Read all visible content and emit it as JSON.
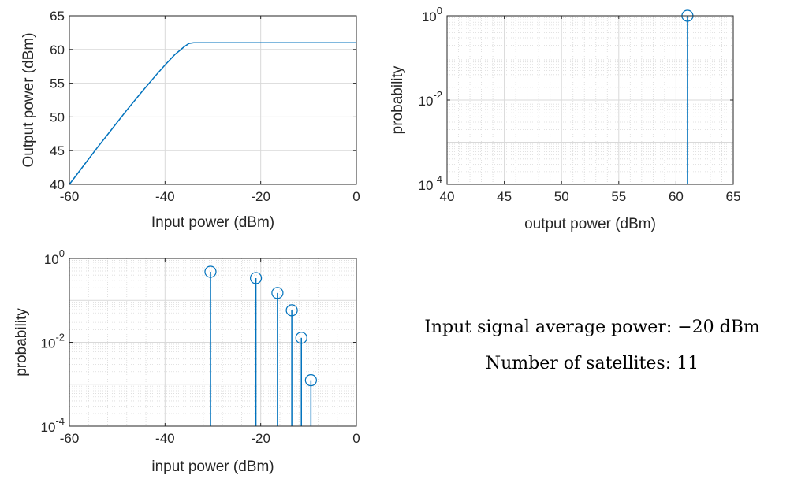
{
  "colors": {
    "series": "#0072BD",
    "grid": "#d9d9d9",
    "axis": "#262626"
  },
  "chart_data": [
    {
      "type": "line",
      "xlabel": "Input power (dBm)",
      "ylabel": "Output power (dBm)",
      "xlim": [
        -60,
        0
      ],
      "ylim": [
        40,
        65
      ],
      "xticks": [
        "-60",
        "-40",
        "-20",
        "0"
      ],
      "yticks": [
        "40",
        "45",
        "50",
        "55",
        "60",
        "65"
      ],
      "grid": true,
      "series": [
        {
          "x": [
            -60,
            -57,
            -54,
            -51,
            -48,
            -45,
            -42,
            -40,
            -38,
            -36,
            -35,
            -34,
            -30,
            -20,
            -10,
            0
          ],
          "y": [
            40.0,
            42.8,
            45.6,
            48.3,
            51.0,
            53.6,
            56.1,
            57.7,
            59.2,
            60.4,
            60.9,
            61.0,
            61.0,
            61.0,
            61.0,
            61.0
          ]
        }
      ]
    },
    {
      "type": "stem",
      "xlabel": "output power (dBm)",
      "ylabel": "probability",
      "xlim": [
        40,
        65
      ],
      "ylim": [
        0.0001,
        1
      ],
      "yscale": "log",
      "xticks": [
        "40",
        "45",
        "50",
        "55",
        "60",
        "65"
      ],
      "yticks": [
        {
          "base": "10",
          "exp": "-4"
        },
        {
          "base": "10",
          "exp": "-2"
        },
        {
          "base": "10",
          "exp": "0"
        }
      ],
      "grid": true,
      "series": [
        {
          "x": [
            61
          ],
          "y": [
            1.0
          ]
        }
      ]
    },
    {
      "type": "stem",
      "xlabel": "input power (dBm)",
      "ylabel": "probability",
      "xlim": [
        -60,
        0
      ],
      "ylim": [
        0.0001,
        1
      ],
      "yscale": "log",
      "xticks": [
        "-60",
        "-40",
        "-20",
        "0"
      ],
      "yticks": [
        {
          "base": "10",
          "exp": "-4"
        },
        {
          "base": "10",
          "exp": "-2"
        },
        {
          "base": "10",
          "exp": "0"
        }
      ],
      "grid": true,
      "series": [
        {
          "x": [
            -30.5,
            -21,
            -16.5,
            -13.5,
            -11.5,
            -9.5
          ],
          "y": [
            0.48,
            0.34,
            0.15,
            0.058,
            0.0128,
            0.00125
          ]
        }
      ]
    }
  ],
  "annotation": {
    "line1": "Input signal average power: −20 dBm",
    "line2": "Number of satellites: 11"
  }
}
